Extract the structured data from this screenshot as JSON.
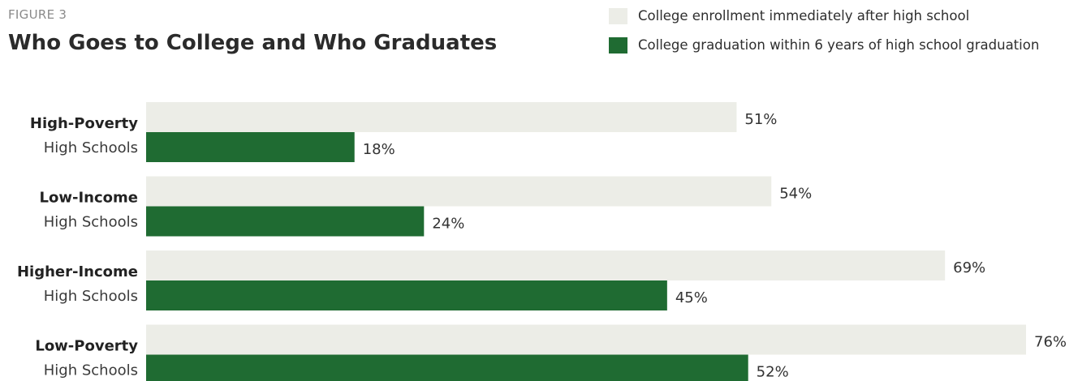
{
  "figure": {
    "label": "FIGURE 3"
  },
  "chart_data": {
    "type": "bar",
    "orientation": "horizontal",
    "title": "Who Goes to College and Who Graduates",
    "categories": [
      {
        "bold": "High-Poverty",
        "normal": "High Schools"
      },
      {
        "bold": "Low-Income",
        "normal": "High Schools"
      },
      {
        "bold": "Higher-Income",
        "normal": "High Schools"
      },
      {
        "bold": "Low-Poverty",
        "normal": "High Schools"
      }
    ],
    "series": [
      {
        "name": "College enrollment immediately after high school",
        "color": "#ecede7",
        "values": [
          51,
          54,
          69,
          76
        ],
        "value_labels": [
          "51%",
          "54%",
          "69%",
          "76%"
        ]
      },
      {
        "name": "College graduation within 6 years of high school graduation",
        "color": "#1f6b32",
        "values": [
          18,
          24,
          45,
          52
        ],
        "value_labels": [
          "18%",
          "24%",
          "45%",
          "52%"
        ]
      }
    ],
    "unit": "%",
    "xlim": [
      0,
      76
    ],
    "grid": false,
    "legend_position": "top-right"
  }
}
